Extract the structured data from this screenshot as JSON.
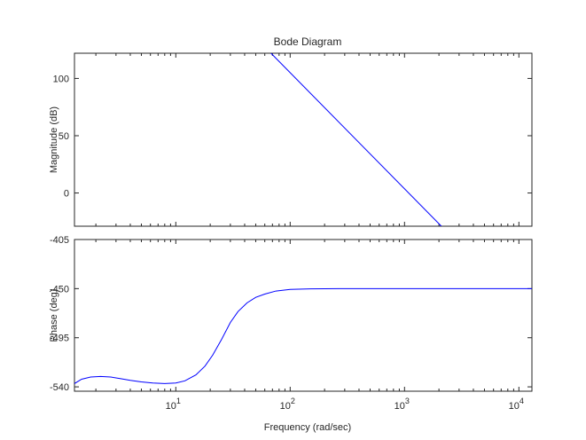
{
  "chart_data": {
    "type": "line",
    "title": "Bode Diagram",
    "xlabel": "Frequency  (rad/sec)",
    "x_scale": "log",
    "xlim": [
      1.3,
      13000
    ],
    "x_ticks": [
      {
        "value": 10,
        "base": "10",
        "exp": "1"
      },
      {
        "value": 100,
        "base": "10",
        "exp": "2"
      },
      {
        "value": 1000,
        "base": "10",
        "exp": "3"
      },
      {
        "value": 10000,
        "base": "10",
        "exp": "4"
      }
    ],
    "line_color": "#0000ff",
    "grid": false,
    "panels": [
      {
        "name": "magnitude",
        "ylabel": "Magnitude (dB)",
        "ylim": [
          -29,
          122
        ],
        "y_ticks": [
          {
            "value": 100,
            "label": "100"
          },
          {
            "value": 50,
            "label": "50"
          },
          {
            "value": 0,
            "label": "0"
          }
        ],
        "series": [
          {
            "x": [
              68,
              2100
            ],
            "y": [
              122,
              -29
            ]
          }
        ]
      },
      {
        "name": "phase",
        "ylabel": "Phase (deg)",
        "ylim": [
          -544,
          -405
        ],
        "y_ticks": [
          {
            "value": -405,
            "label": "-405"
          },
          {
            "value": -450,
            "label": "-450"
          },
          {
            "value": -495,
            "label": "-495"
          },
          {
            "value": -540,
            "label": "-540"
          }
        ],
        "series": [
          {
            "x": [
              1.3,
              1.5,
              1.8,
              2.2,
              2.7,
              3.3,
              4,
              5,
              6.3,
              8,
              10,
              12,
              15,
              18,
              21,
              25,
              30,
              35,
              42,
              50,
              60,
              75,
              100,
              150,
              200,
              300,
              500,
              700,
              1000,
              2000,
              5000,
              13000
            ],
            "y": [
              -537,
              -533,
              -531,
              -530.5,
              -531,
              -532.5,
              -534,
              -535.5,
              -536.5,
              -537,
              -536.5,
              -534.5,
              -529,
              -521,
              -511,
              -497,
              -481,
              -471,
              -463,
              -458,
              -455,
              -452.2,
              -450.7,
              -450.2,
              -450.1,
              -450,
              -450,
              -450,
              -450,
              -450,
              -450,
              -450
            ]
          }
        ]
      }
    ]
  }
}
